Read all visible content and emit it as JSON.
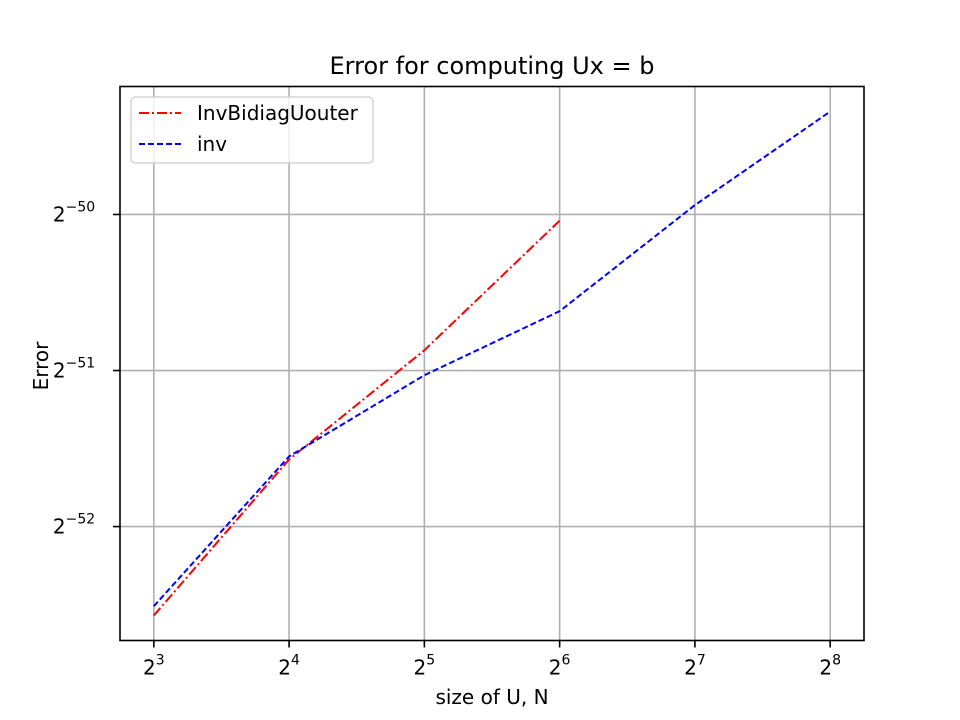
{
  "chart_data": {
    "type": "line",
    "title": "Error for computing Ux = b",
    "xlabel": "size of U, N",
    "ylabel": "Error",
    "x_scale": "log2",
    "y_scale": "log2",
    "xlim_log2": [
      2.75,
      8.25
    ],
    "ylim_log2": [
      -52.73,
      -49.18
    ],
    "x_ticks": [
      {
        "base": "2",
        "exp": "3"
      },
      {
        "base": "2",
        "exp": "4"
      },
      {
        "base": "2",
        "exp": "5"
      },
      {
        "base": "2",
        "exp": "6"
      },
      {
        "base": "2",
        "exp": "7"
      },
      {
        "base": "2",
        "exp": "8"
      }
    ],
    "y_ticks": [
      {
        "base": "2",
        "exp": "−50"
      },
      {
        "base": "2",
        "exp": "−51"
      },
      {
        "base": "2",
        "exp": "−52"
      }
    ],
    "grid": true,
    "legend_position": "top-left",
    "series": [
      {
        "name": "InvBidiagUouter",
        "color": "#ff0000",
        "style": "dashdot",
        "x_log2": [
          3,
          4,
          5,
          6
        ],
        "y_log2": [
          -52.57,
          -51.57,
          -50.87,
          -50.04
        ]
      },
      {
        "name": "inv",
        "color": "#0000ff",
        "style": "dashed",
        "x_log2": [
          3,
          4,
          5,
          6,
          7,
          8
        ],
        "y_log2": [
          -52.51,
          -51.55,
          -51.03,
          -50.62,
          -49.94,
          -49.34
        ]
      }
    ]
  }
}
